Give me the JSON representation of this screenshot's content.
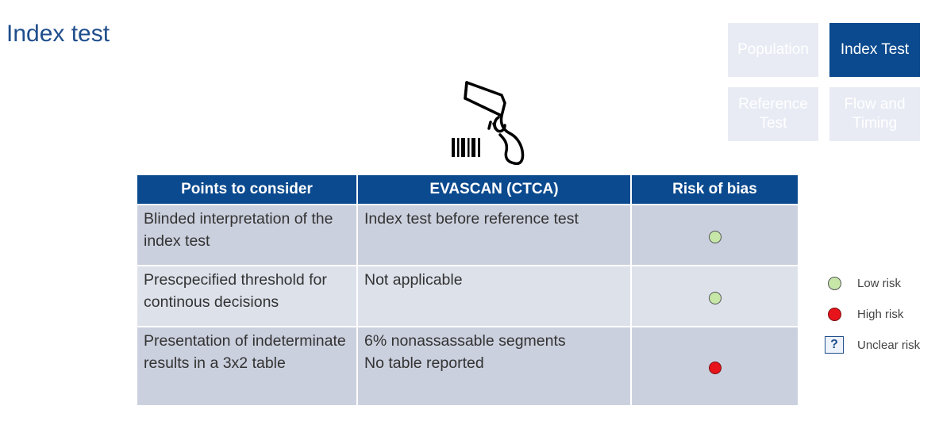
{
  "title": "Index test",
  "nav": {
    "population": "Population",
    "index_test": "Index Test",
    "reference_test": "Reference Test",
    "flow_timing": "Flow and Timing"
  },
  "table": {
    "headers": [
      "Points to consider",
      "EVASCAN (CTCA)",
      "Risk of bias"
    ],
    "rows": [
      {
        "point": "Blinded interpretation of the index test",
        "evascan": "Index test before reference test",
        "risk": "low"
      },
      {
        "point": "Prescpecified threshold for continous decisions",
        "evascan": "Not applicable",
        "risk": "low"
      },
      {
        "point": "Presentation of indeterminate results in a 3x2 table",
        "evascan": "6% nonassassable segments",
        "evascan_line2": "No table reported",
        "risk": "high"
      }
    ]
  },
  "legend": {
    "low": "Low risk",
    "high": "High risk",
    "unclear": "Unclear risk",
    "unclear_symbol": "?"
  },
  "colors": {
    "low": "#c6e7a8",
    "high": "#e8141c",
    "header": "#0b4a8e",
    "title": "#1f4e8c"
  }
}
